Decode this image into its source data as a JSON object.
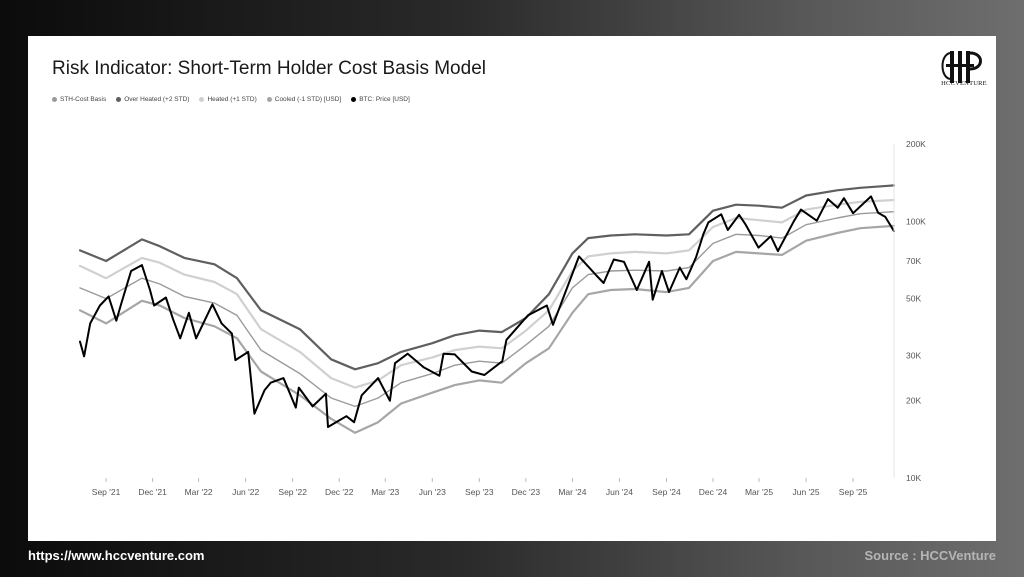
{
  "page": {
    "title": "Risk Indicator: Short-Term Holder Cost Basis Model",
    "logo_text": "HCCVENTURE",
    "footer_url": "https://www.hccventure.com",
    "footer_source": "Source : HCCVenture"
  },
  "colors": {
    "background_dark": "#0b0b0b",
    "card": "#ffffff",
    "cost_basis": "#9a9a9a",
    "over_heated": "#5f5f5f",
    "heated": "#d0d0d0",
    "cooled": "#a6a6a6",
    "price": "#000000"
  },
  "chart_data": {
    "type": "line",
    "title": "Risk Indicator: Short-Term Holder Cost Basis Model",
    "y_scale": "log",
    "ylim": [
      10000,
      200000
    ],
    "y_ticks": [
      {
        "value": 200000,
        "label": "200K"
      },
      {
        "value": 100000,
        "label": "100K"
      },
      {
        "value": 70000,
        "label": "70K"
      },
      {
        "value": 50000,
        "label": "50K"
      },
      {
        "value": 30000,
        "label": "30K"
      },
      {
        "value": 20000,
        "label": "20K"
      },
      {
        "value": 10000,
        "label": "10K"
      }
    ],
    "xlim": [
      "2021-07-12",
      "2025-11-20"
    ],
    "x_ticks": [
      {
        "date": "2021-09-01",
        "label": "Sep '21"
      },
      {
        "date": "2021-12-01",
        "label": "Dec '21"
      },
      {
        "date": "2022-03-01",
        "label": "Mar '22"
      },
      {
        "date": "2022-06-01",
        "label": "Jun '22"
      },
      {
        "date": "2022-09-01",
        "label": "Sep '22"
      },
      {
        "date": "2022-12-01",
        "label": "Dec '22"
      },
      {
        "date": "2023-03-01",
        "label": "Mar '23"
      },
      {
        "date": "2023-06-01",
        "label": "Jun '23"
      },
      {
        "date": "2023-09-01",
        "label": "Sep '23"
      },
      {
        "date": "2023-12-01",
        "label": "Dec '23"
      },
      {
        "date": "2024-03-01",
        "label": "Mar '24"
      },
      {
        "date": "2024-06-01",
        "label": "Jun '24"
      },
      {
        "date": "2024-09-01",
        "label": "Sep '24"
      },
      {
        "date": "2024-12-01",
        "label": "Dec '24"
      },
      {
        "date": "2025-03-01",
        "label": "Mar '25"
      },
      {
        "date": "2025-06-01",
        "label": "Jun '25"
      },
      {
        "date": "2025-09-01",
        "label": "Sep '25"
      }
    ],
    "legend": [
      {
        "label": "STH-Cost Basis",
        "color": "#9a9a9a"
      },
      {
        "label": "Over Heated (+2 STD)",
        "color": "#5f5f5f"
      },
      {
        "label": "Heated (+1 STD)",
        "color": "#d0d0d0"
      },
      {
        "label": "Cooled (-1 STD) [USD]",
        "color": "#a6a6a6"
      },
      {
        "label": "BTC: Price [USD]",
        "color": "#000000"
      }
    ],
    "series": [
      {
        "name": "Over Heated (+2 STD)",
        "color": "#5f5f5f",
        "width": 2.2,
        "points": [
          [
            "2021-07-12",
            77000
          ],
          [
            "2021-09-01",
            70000
          ],
          [
            "2021-11-10",
            85000
          ],
          [
            "2021-12-15",
            80000
          ],
          [
            "2022-02-01",
            72000
          ],
          [
            "2022-04-01",
            68000
          ],
          [
            "2022-05-15",
            60000
          ],
          [
            "2022-07-01",
            45000
          ],
          [
            "2022-09-15",
            38000
          ],
          [
            "2022-11-15",
            29000
          ],
          [
            "2023-01-01",
            26500
          ],
          [
            "2023-02-15",
            28000
          ],
          [
            "2023-04-01",
            31000
          ],
          [
            "2023-06-01",
            33500
          ],
          [
            "2023-07-15",
            36000
          ],
          [
            "2023-09-01",
            37500
          ],
          [
            "2023-10-15",
            37000
          ],
          [
            "2023-12-01",
            42000
          ],
          [
            "2024-01-15",
            52000
          ],
          [
            "2024-03-01",
            75000
          ],
          [
            "2024-04-01",
            86000
          ],
          [
            "2024-05-15",
            88000
          ],
          [
            "2024-07-01",
            89000
          ],
          [
            "2024-09-01",
            88000
          ],
          [
            "2024-10-15",
            89000
          ],
          [
            "2024-12-01",
            110000
          ],
          [
            "2025-01-15",
            116000
          ],
          [
            "2025-03-01",
            115000
          ],
          [
            "2025-04-15",
            113000
          ],
          [
            "2025-06-01",
            126000
          ],
          [
            "2025-08-01",
            132000
          ],
          [
            "2025-09-15",
            135000
          ],
          [
            "2025-11-20",
            138000
          ]
        ]
      },
      {
        "name": "Heated (+1 STD)",
        "color": "#d0d0d0",
        "width": 2.2,
        "points": [
          [
            "2021-07-12",
            67000
          ],
          [
            "2021-09-01",
            60000
          ],
          [
            "2021-11-10",
            72000
          ],
          [
            "2021-12-15",
            69000
          ],
          [
            "2022-02-01",
            62000
          ],
          [
            "2022-04-01",
            58000
          ],
          [
            "2022-05-15",
            52000
          ],
          [
            "2022-07-01",
            38000
          ],
          [
            "2022-09-15",
            31000
          ],
          [
            "2022-11-15",
            24500
          ],
          [
            "2023-01-01",
            22500
          ],
          [
            "2023-02-15",
            24000
          ],
          [
            "2023-04-01",
            27500
          ],
          [
            "2023-06-01",
            29500
          ],
          [
            "2023-07-15",
            31500
          ],
          [
            "2023-09-01",
            32500
          ],
          [
            "2023-10-15",
            32000
          ],
          [
            "2023-12-01",
            37500
          ],
          [
            "2024-01-15",
            45000
          ],
          [
            "2024-03-01",
            64000
          ],
          [
            "2024-04-01",
            73000
          ],
          [
            "2024-05-15",
            75000
          ],
          [
            "2024-07-01",
            76000
          ],
          [
            "2024-09-01",
            75000
          ],
          [
            "2024-10-15",
            77000
          ],
          [
            "2024-12-01",
            95000
          ],
          [
            "2025-01-15",
            103000
          ],
          [
            "2025-03-01",
            101000
          ],
          [
            "2025-04-15",
            99000
          ],
          [
            "2025-06-01",
            111000
          ],
          [
            "2025-08-01",
            116000
          ],
          [
            "2025-09-15",
            119000
          ],
          [
            "2025-11-20",
            121000
          ]
        ]
      },
      {
        "name": "STH-Cost Basis",
        "color": "#9a9a9a",
        "width": 1.4,
        "points": [
          [
            "2021-07-12",
            55000
          ],
          [
            "2021-09-01",
            50000
          ],
          [
            "2021-11-10",
            60000
          ],
          [
            "2021-12-15",
            57000
          ],
          [
            "2022-02-01",
            51000
          ],
          [
            "2022-04-01",
            48000
          ],
          [
            "2022-05-15",
            43000
          ],
          [
            "2022-07-01",
            31500
          ],
          [
            "2022-09-15",
            25500
          ],
          [
            "2022-11-15",
            20500
          ],
          [
            "2023-01-01",
            19000
          ],
          [
            "2023-02-15",
            20500
          ],
          [
            "2023-04-01",
            23500
          ],
          [
            "2023-06-01",
            25500
          ],
          [
            "2023-07-15",
            27500
          ],
          [
            "2023-09-01",
            28500
          ],
          [
            "2023-10-15",
            28000
          ],
          [
            "2023-12-01",
            33000
          ],
          [
            "2024-01-15",
            39000
          ],
          [
            "2024-03-01",
            55000
          ],
          [
            "2024-04-01",
            62000
          ],
          [
            "2024-05-15",
            64000
          ],
          [
            "2024-07-01",
            64500
          ],
          [
            "2024-09-01",
            64000
          ],
          [
            "2024-10-15",
            66000
          ],
          [
            "2024-12-01",
            82000
          ],
          [
            "2025-01-15",
            89000
          ],
          [
            "2025-03-01",
            88000
          ],
          [
            "2025-04-15",
            86000
          ],
          [
            "2025-06-01",
            97000
          ],
          [
            "2025-08-01",
            103000
          ],
          [
            "2025-09-15",
            107000
          ],
          [
            "2025-11-20",
            109000
          ]
        ]
      },
      {
        "name": "Cooled (-1 STD) [USD]",
        "color": "#a6a6a6",
        "width": 2.2,
        "points": [
          [
            "2021-07-12",
            45000
          ],
          [
            "2021-09-01",
            40000
          ],
          [
            "2021-11-10",
            49000
          ],
          [
            "2021-12-15",
            47000
          ],
          [
            "2022-02-01",
            42000
          ],
          [
            "2022-04-01",
            39000
          ],
          [
            "2022-05-15",
            35000
          ],
          [
            "2022-07-01",
            26000
          ],
          [
            "2022-09-15",
            21000
          ],
          [
            "2022-11-15",
            17000
          ],
          [
            "2023-01-01",
            15000
          ],
          [
            "2023-02-15",
            16500
          ],
          [
            "2023-04-01",
            19500
          ],
          [
            "2023-06-01",
            21500
          ],
          [
            "2023-07-15",
            23000
          ],
          [
            "2023-09-01",
            24000
          ],
          [
            "2023-10-15",
            23500
          ],
          [
            "2023-12-01",
            28000
          ],
          [
            "2024-01-15",
            32000
          ],
          [
            "2024-03-01",
            44000
          ],
          [
            "2024-04-01",
            52000
          ],
          [
            "2024-05-15",
            54000
          ],
          [
            "2024-07-01",
            54500
          ],
          [
            "2024-09-01",
            53000
          ],
          [
            "2024-10-15",
            55000
          ],
          [
            "2024-12-01",
            70000
          ],
          [
            "2025-01-15",
            76000
          ],
          [
            "2025-03-01",
            75000
          ],
          [
            "2025-04-15",
            74000
          ],
          [
            "2025-06-01",
            84000
          ],
          [
            "2025-08-01",
            90000
          ],
          [
            "2025-09-15",
            94000
          ],
          [
            "2025-11-20",
            96000
          ]
        ]
      },
      {
        "name": "BTC: Price [USD]",
        "color": "#000000",
        "width": 2.0,
        "points": [
          [
            "2021-07-12",
            34000
          ],
          [
            "2021-07-20",
            29800
          ],
          [
            "2021-08-01",
            40000
          ],
          [
            "2021-08-20",
            47000
          ],
          [
            "2021-09-06",
            51000
          ],
          [
            "2021-09-21",
            41000
          ],
          [
            "2021-10-01",
            48000
          ],
          [
            "2021-10-20",
            64000
          ],
          [
            "2021-11-10",
            67500
          ],
          [
            "2021-11-26",
            54000
          ],
          [
            "2021-12-04",
            47000
          ],
          [
            "2021-12-27",
            50500
          ],
          [
            "2022-01-10",
            41500
          ],
          [
            "2022-01-24",
            35000
          ],
          [
            "2022-02-10",
            44000
          ],
          [
            "2022-02-24",
            35000
          ],
          [
            "2022-03-28",
            47500
          ],
          [
            "2022-04-15",
            40000
          ],
          [
            "2022-05-05",
            36500
          ],
          [
            "2022-05-12",
            28800
          ],
          [
            "2022-06-06",
            31000
          ],
          [
            "2022-06-18",
            17800
          ],
          [
            "2022-07-08",
            22000
          ],
          [
            "2022-07-20",
            23500
          ],
          [
            "2022-08-14",
            24500
          ],
          [
            "2022-09-07",
            18800
          ],
          [
            "2022-09-13",
            22500
          ],
          [
            "2022-10-10",
            19000
          ],
          [
            "2022-11-05",
            21300
          ],
          [
            "2022-11-09",
            15800
          ],
          [
            "2022-12-15",
            17400
          ],
          [
            "2022-12-30",
            16500
          ],
          [
            "2023-01-14",
            21000
          ],
          [
            "2023-02-15",
            24500
          ],
          [
            "2023-03-10",
            20000
          ],
          [
            "2023-03-20",
            28000
          ],
          [
            "2023-04-14",
            30500
          ],
          [
            "2023-05-15",
            27000
          ],
          [
            "2023-06-15",
            25000
          ],
          [
            "2023-06-23",
            30500
          ],
          [
            "2023-07-15",
            30300
          ],
          [
            "2023-08-17",
            26000
          ],
          [
            "2023-09-11",
            25200
          ],
          [
            "2023-10-16",
            28500
          ],
          [
            "2023-10-24",
            34500
          ],
          [
            "2023-12-05",
            43000
          ],
          [
            "2024-01-11",
            47000
          ],
          [
            "2024-01-23",
            39500
          ],
          [
            "2024-02-28",
            61000
          ],
          [
            "2024-03-14",
            73000
          ],
          [
            "2024-04-17",
            61500
          ],
          [
            "2024-05-01",
            57500
          ],
          [
            "2024-05-21",
            71000
          ],
          [
            "2024-06-10",
            69500
          ],
          [
            "2024-07-05",
            54000
          ],
          [
            "2024-07-29",
            69500
          ],
          [
            "2024-08-05",
            49500
          ],
          [
            "2024-08-23",
            64000
          ],
          [
            "2024-09-06",
            53000
          ],
          [
            "2024-09-27",
            66000
          ],
          [
            "2024-10-10",
            59500
          ],
          [
            "2024-10-29",
            72500
          ],
          [
            "2024-11-12",
            89000
          ],
          [
            "2024-11-22",
            99000
          ],
          [
            "2024-12-17",
            106500
          ],
          [
            "2024-12-30",
            92500
          ],
          [
            "2025-01-21",
            106000
          ],
          [
            "2025-02-03",
            97000
          ],
          [
            "2025-02-28",
            79000
          ],
          [
            "2025-03-24",
            87500
          ],
          [
            "2025-04-07",
            76500
          ],
          [
            "2025-05-08",
            100000
          ],
          [
            "2025-05-22",
            111000
          ],
          [
            "2025-06-22",
            100500
          ],
          [
            "2025-07-14",
            122000
          ],
          [
            "2025-08-02",
            113000
          ],
          [
            "2025-08-14",
            123000
          ],
          [
            "2025-09-01",
            107500
          ],
          [
            "2025-10-06",
            125000
          ],
          [
            "2025-10-20",
            108000
          ],
          [
            "2025-11-03",
            104000
          ],
          [
            "2025-11-20",
            91500
          ]
        ]
      }
    ]
  }
}
